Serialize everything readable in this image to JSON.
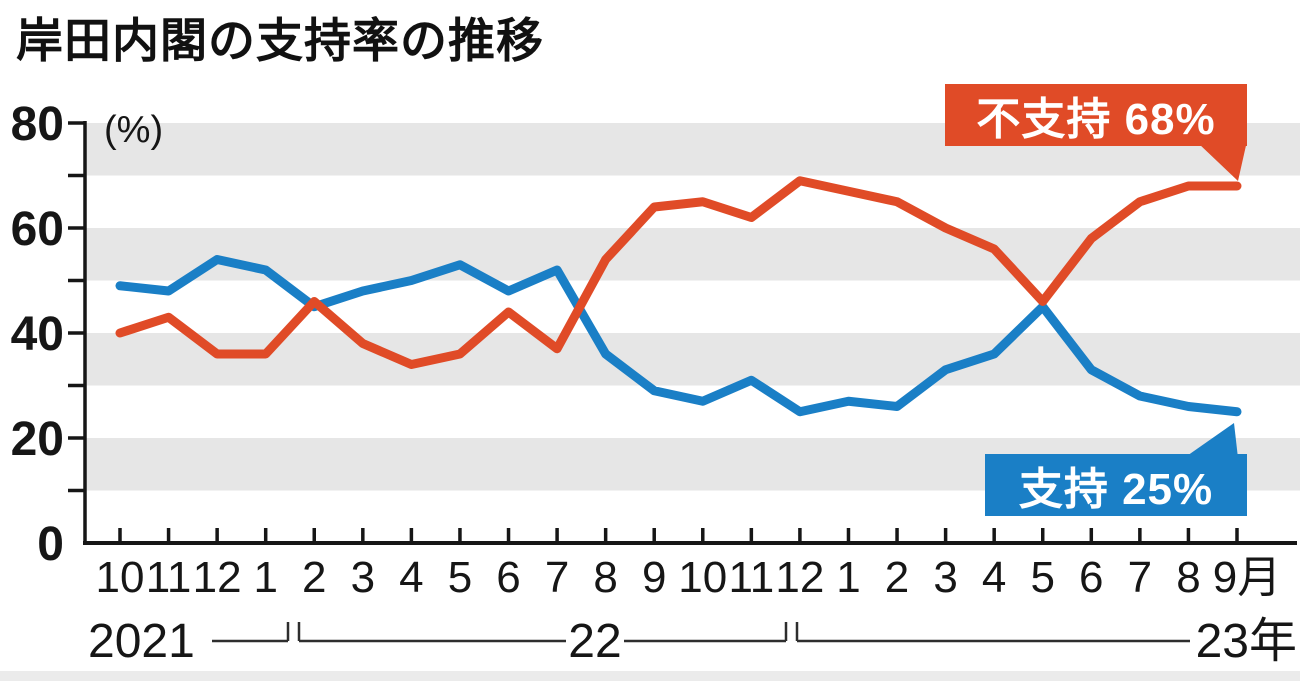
{
  "title": "岸田内閣の支持率の推移",
  "y_axis": {
    "unit_label": "(%)",
    "major_tick_labels": [
      80,
      60,
      40,
      20,
      0
    ],
    "minor_step": 10,
    "max": 80
  },
  "x_axis": {
    "month_labels": [
      "10",
      "11",
      "12",
      "1",
      "2",
      "3",
      "4",
      "5",
      "6",
      "7",
      "8",
      "9",
      "10",
      "11",
      "12",
      "1",
      "2",
      "3",
      "4",
      "5",
      "6",
      "7",
      "8",
      "9月"
    ],
    "year_labels": [
      "2021",
      "22",
      "23年"
    ]
  },
  "annotations": {
    "disapproval_label": "不支持 68%",
    "approval_label": "支持 25%"
  },
  "colors": {
    "approval_blue": "#1a7fc6",
    "disapproval_red": "#e04b27",
    "stripe_gray": "#e6e6e6",
    "axis_black": "#161616"
  },
  "chart_data": {
    "type": "line",
    "title": "岸田内閣の支持率の推移",
    "ylabel": "(%)",
    "ylim": [
      0,
      80
    ],
    "grid": "horizontal-stripes",
    "legend_position": "inline-callouts",
    "categories": [
      "10",
      "11",
      "12",
      "1",
      "2",
      "3",
      "4",
      "5",
      "6",
      "7",
      "8",
      "9",
      "10",
      "11",
      "12",
      "1",
      "2",
      "3",
      "4",
      "5",
      "6",
      "7",
      "8",
      "9月"
    ],
    "year_groups": [
      {
        "label": "2021",
        "months": 3
      },
      {
        "label": "22",
        "months": 12
      },
      {
        "label": "23年",
        "months": 9
      }
    ],
    "series": [
      {
        "name": "支持",
        "color": "#1a7fc6",
        "values": [
          49,
          48,
          54,
          52,
          45,
          48,
          50,
          53,
          48,
          52,
          36,
          29,
          27,
          31,
          25,
          27,
          26,
          33,
          36,
          45,
          33,
          28,
          26,
          25
        ]
      },
      {
        "name": "不支持",
        "color": "#e04b27",
        "values": [
          40,
          43,
          36,
          36,
          46,
          38,
          34,
          36,
          44,
          37,
          54,
          64,
          65,
          62,
          69,
          67,
          65,
          60,
          56,
          46,
          58,
          65,
          68,
          68
        ]
      }
    ],
    "final_values": {
      "支持": 25,
      "不支持": 68
    }
  }
}
